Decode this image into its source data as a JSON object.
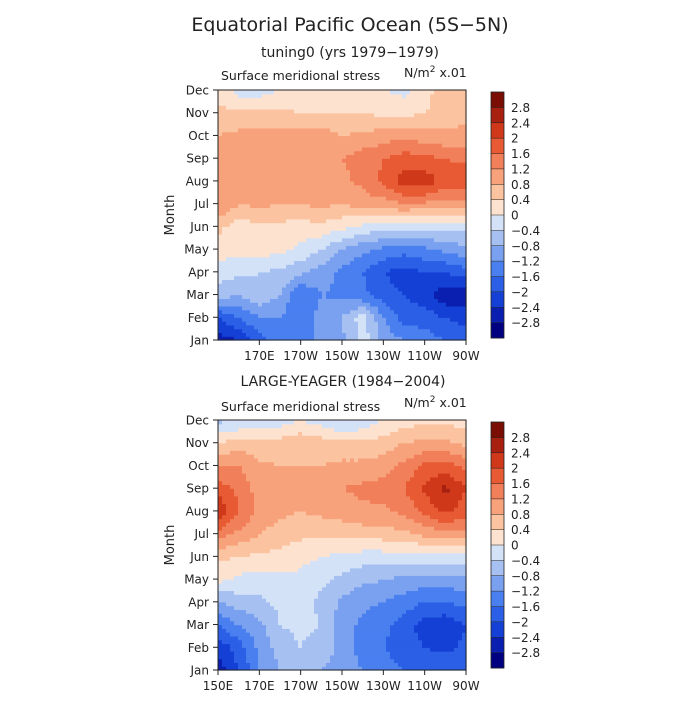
{
  "title": "Equatorial Pacific Ocean (5S−5N)",
  "units_prefix": "N/m",
  "units_sup": "2",
  "units_suffix": " x.01",
  "colorbar": {
    "colors": [
      "#000080",
      "#0a1fb0",
      "#1440d6",
      "#2a5fe6",
      "#4a7ff0",
      "#7aa0f0",
      "#a6c0f2",
      "#d4e2f8",
      "#fde3cf",
      "#fbc3a0",
      "#f7a27b",
      "#f1805a",
      "#e85a33",
      "#d0381a",
      "#a82010",
      "#7a0e05"
    ],
    "labels": [
      "−2.8",
      "−2.4",
      "−2",
      "−1.6",
      "−1.2",
      "−0.8",
      "−0.4",
      "0",
      "0.4",
      "0.8",
      "1.2",
      "1.6",
      "2",
      "2.4",
      "2.8"
    ],
    "levels": [
      -2.8,
      -2.4,
      -2,
      -1.6,
      -1.2,
      -0.8,
      -0.4,
      0,
      0.4,
      0.8,
      1.2,
      1.6,
      2,
      2.4,
      2.8
    ]
  },
  "chart_data": [
    {
      "type": "heatmap",
      "title": "tuning0 (yrs 1979−1979)",
      "subtitle": "Surface meridional stress",
      "ylabel": "Month",
      "xlim": [
        150,
        270
      ],
      "xticks": [
        170,
        190,
        210,
        230,
        250,
        270
      ],
      "xtick_labels": [
        "170E",
        "170W",
        "150W",
        "130W",
        "110W",
        "90W"
      ],
      "ymonths": [
        "Jan",
        "Feb",
        "Mar",
        "Apr",
        "May",
        "Jun",
        "Jul",
        "Aug",
        "Sep",
        "Oct",
        "Nov",
        "Dec"
      ],
      "lon": [
        150,
        160,
        170,
        180,
        190,
        200,
        210,
        220,
        230,
        240,
        250,
        260,
        270
      ],
      "values": [
        [
          -2.6,
          -2.4,
          -1.8,
          -1.4,
          -1.6,
          -1.0,
          -0.9,
          -0.2,
          -0.9,
          -1.2,
          -1.4,
          -1.6,
          -1.7
        ],
        [
          -2.0,
          -1.6,
          -1.2,
          -1.2,
          -1.6,
          -1.0,
          -0.8,
          -0.2,
          -1.2,
          -1.8,
          -1.8,
          -2.0,
          -2.2
        ],
        [
          -0.6,
          -0.8,
          -0.5,
          -0.8,
          -1.6,
          -1.2,
          -1.3,
          -1.5,
          -1.8,
          -2.0,
          -2.2,
          -2.7,
          -2.6
        ],
        [
          -0.2,
          -0.3,
          -0.4,
          -0.5,
          -0.7,
          -1.0,
          -1.3,
          -1.6,
          -2.0,
          -2.2,
          -2.0,
          -2.0,
          -1.8
        ],
        [
          0.2,
          0.1,
          0.2,
          0.1,
          -0.1,
          -0.4,
          -0.8,
          -1.1,
          -1.3,
          -1.4,
          -1.3,
          -1.1,
          -0.9
        ],
        [
          0.5,
          0.2,
          0.3,
          0.3,
          0.2,
          0.3,
          0.1,
          -0.1,
          -0.2,
          -0.3,
          -0.3,
          -0.2,
          -0.3
        ],
        [
          1.2,
          0.8,
          0.9,
          0.8,
          0.8,
          0.9,
          0.8,
          1.0,
          1.0,
          1.2,
          1.1,
          1.0,
          1.0
        ],
        [
          1.0,
          1.0,
          1.0,
          0.9,
          1.0,
          1.0,
          1.1,
          1.3,
          1.7,
          2.2,
          2.3,
          1.8,
          2.0
        ],
        [
          0.9,
          1.0,
          0.9,
          0.8,
          1.1,
          1.2,
          1.2,
          1.4,
          1.6,
          1.8,
          1.7,
          1.6,
          1.5
        ],
        [
          0.8,
          0.9,
          0.9,
          1.0,
          1.0,
          1.0,
          0.8,
          0.9,
          1.0,
          1.1,
          1.0,
          0.9,
          0.9
        ],
        [
          0.5,
          0.5,
          0.5,
          0.5,
          0.4,
          0.4,
          0.4,
          0.4,
          0.3,
          0.3,
          0.4,
          0.6,
          0.7
        ],
        [
          0.3,
          -0.2,
          -0.2,
          0.0,
          0.1,
          0.2,
          0.2,
          0.2,
          0.0,
          -0.1,
          0.2,
          0.7,
          0.8
        ]
      ]
    },
    {
      "type": "heatmap",
      "title": "LARGE-YEAGER (1984−2004)",
      "subtitle": "Surface meridional stress",
      "ylabel": "Month",
      "xlim": [
        150,
        270
      ],
      "xticks": [
        150,
        170,
        190,
        210,
        230,
        250,
        270
      ],
      "xtick_labels": [
        "150E",
        "170E",
        "170W",
        "150W",
        "130W",
        "110W",
        "90W"
      ],
      "ymonths": [
        "Jan",
        "Feb",
        "Mar",
        "Apr",
        "May",
        "Jun",
        "Jul",
        "Aug",
        "Sep",
        "Oct",
        "Nov",
        "Dec"
      ],
      "lon": [
        150,
        160,
        170,
        180,
        190,
        200,
        210,
        220,
        230,
        240,
        250,
        260,
        270
      ],
      "values": [
        [
          -2.6,
          -2.0,
          -1.2,
          -0.8,
          -0.7,
          -0.8,
          -1.0,
          -1.2,
          -1.4,
          -1.6,
          -1.7,
          -1.7,
          -1.6
        ],
        [
          -2.3,
          -1.8,
          -1.1,
          -0.6,
          -0.4,
          -0.6,
          -0.9,
          -1.4,
          -1.6,
          -1.8,
          -2.0,
          -2.1,
          -1.9
        ],
        [
          -1.6,
          -1.2,
          -0.9,
          -0.4,
          -0.3,
          -0.4,
          -1.0,
          -1.3,
          -1.5,
          -1.8,
          -2.2,
          -2.3,
          -2.0
        ],
        [
          -0.8,
          -0.6,
          -0.5,
          -0.3,
          -0.2,
          -0.5,
          -0.9,
          -1.1,
          -1.2,
          -1.4,
          -1.6,
          -1.6,
          -1.5
        ],
        [
          0.1,
          -0.1,
          -0.2,
          -0.1,
          -0.1,
          -0.3,
          -0.5,
          -0.7,
          -0.8,
          -0.9,
          -1.0,
          -1.0,
          -0.9
        ],
        [
          0.5,
          0.4,
          0.3,
          0.3,
          0.1,
          0.0,
          -0.1,
          -0.2,
          -0.2,
          -0.2,
          -0.2,
          -0.1,
          -0.1
        ],
        [
          1.4,
          1.1,
          0.8,
          0.6,
          0.5,
          0.5,
          0.5,
          0.6,
          0.6,
          0.7,
          0.9,
          1.1,
          1.0
        ],
        [
          2.4,
          1.6,
          1.1,
          0.9,
          0.8,
          0.9,
          1.0,
          1.1,
          1.1,
          1.3,
          1.7,
          2.1,
          1.8
        ],
        [
          1.8,
          1.5,
          1.0,
          0.8,
          0.9,
          1.0,
          1.2,
          1.3,
          1.4,
          1.6,
          2.1,
          2.5,
          2.0
        ],
        [
          1.2,
          1.2,
          0.9,
          0.8,
          0.8,
          0.8,
          0.9,
          0.9,
          1.0,
          1.3,
          1.7,
          1.8,
          1.5
        ],
        [
          0.4,
          0.6,
          0.5,
          0.6,
          0.7,
          0.6,
          0.5,
          0.5,
          0.6,
          0.8,
          0.9,
          0.9,
          0.7
        ],
        [
          -0.5,
          -0.4,
          -0.3,
          -0.2,
          0.0,
          -0.2,
          -0.5,
          -0.3,
          0.0,
          0.2,
          0.3,
          0.3,
          0.2
        ]
      ]
    }
  ]
}
